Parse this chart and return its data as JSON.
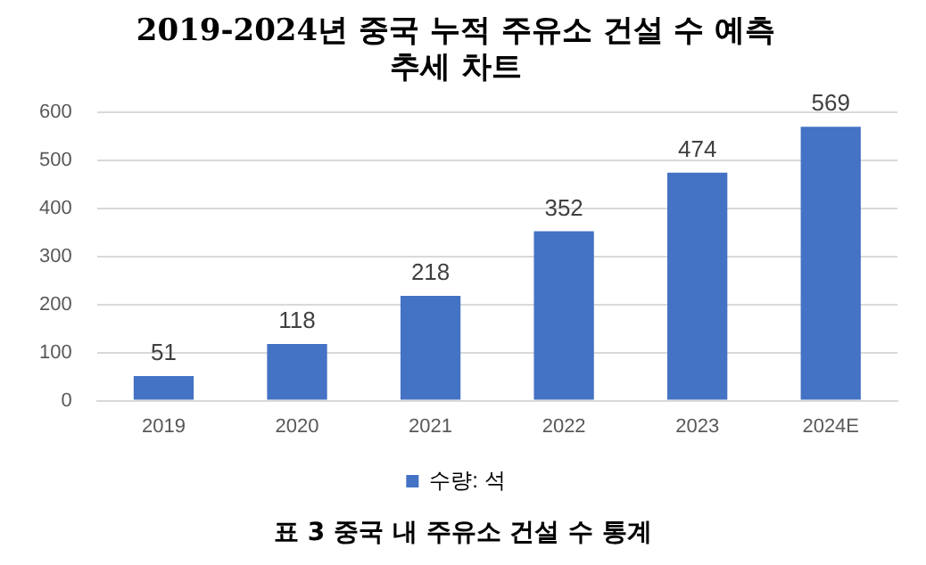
{
  "chart_data": {
    "type": "bar",
    "title": "2019-2024년 중국 누적 주유소 건설 수 예측\n추세 차트",
    "categories": [
      "2019",
      "2020",
      "2021",
      "2022",
      "2023",
      "2024E"
    ],
    "series": [
      {
        "name": "수량: 석",
        "color": "#4472c4",
        "values": [
          51,
          118,
          218,
          352,
          474,
          569
        ]
      }
    ],
    "ylim": [
      0,
      600
    ],
    "yticks": [
      0,
      100,
      200,
      300,
      400,
      500,
      600
    ],
    "grid": "y",
    "legend": "bottom",
    "data_labels": true,
    "annotations": [
      "표 3 중국 내 주유소 건설 수 통계"
    ]
  }
}
